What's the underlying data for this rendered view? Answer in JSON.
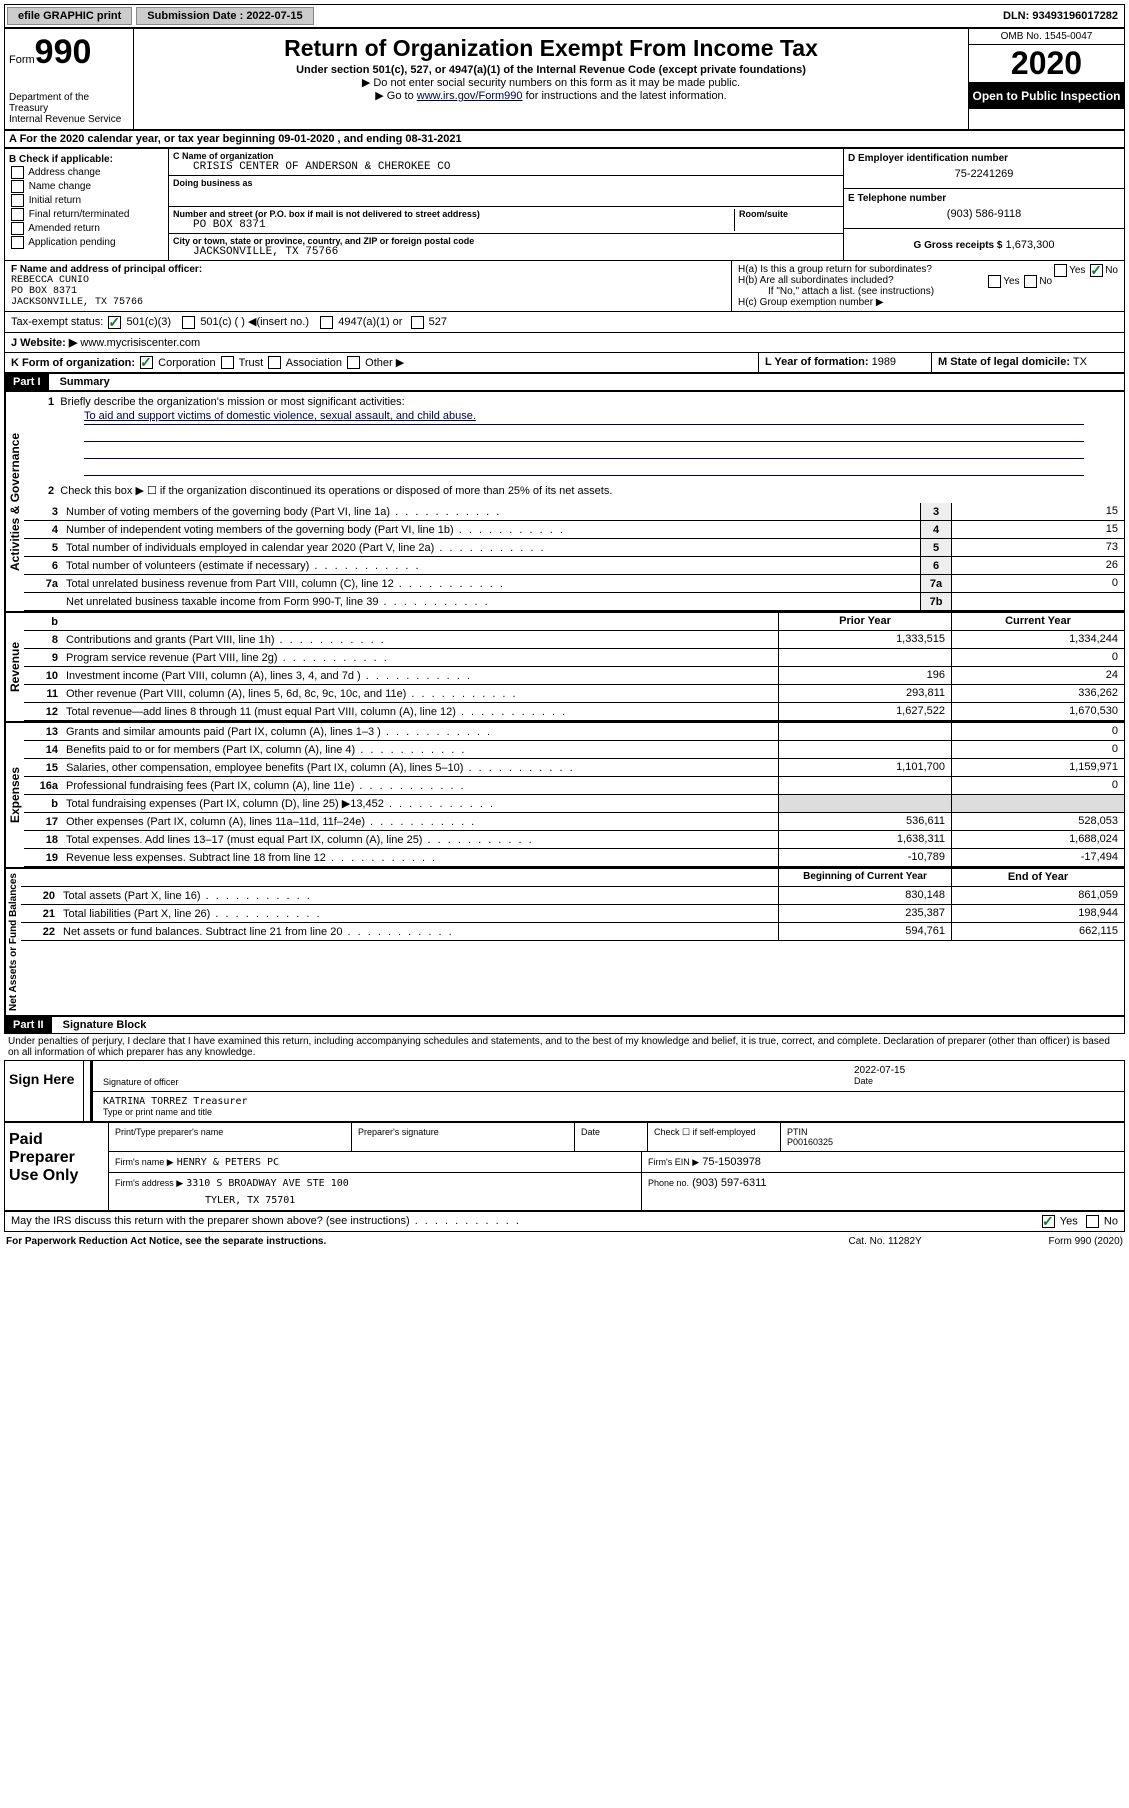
{
  "topbar": {
    "efile": "efile GRAPHIC print",
    "submission_label": "Submission Date : 2022-07-15",
    "dln": "DLN: 93493196017282"
  },
  "header": {
    "form_label": "Form",
    "form_num": "990",
    "dept": "Department of the Treasury",
    "irs": "Internal Revenue Service",
    "title": "Return of Organization Exempt From Income Tax",
    "subtitle": "Under section 501(c), 527, or 4947(a)(1) of the Internal Revenue Code (except private foundations)",
    "note1": "▶ Do not enter social security numbers on this form as it may be made public.",
    "note2_pre": "▶ Go to ",
    "note2_link": "www.irs.gov/Form990",
    "note2_post": " for instructions and the latest information.",
    "omb": "OMB No. 1545-0047",
    "year": "2020",
    "open": "Open to Public Inspection"
  },
  "row_a": "A For the 2020 calendar year, or tax year beginning 09-01-2020    , and ending 08-31-2021",
  "section_b": {
    "b_label": "B Check if applicable:",
    "b_items": [
      "Address change",
      "Name change",
      "Initial return",
      "Final return/terminated",
      "Amended return",
      "Application pending"
    ],
    "c_name_label": "C Name of organization",
    "c_name": "CRISIS CENTER OF ANDERSON & CHEROKEE CO",
    "dba_label": "Doing business as",
    "dba": "",
    "addr_label": "Number and street (or P.O. box if mail is not delivered to street address)",
    "room_label": "Room/suite",
    "addr": "PO BOX 8371",
    "city_label": "City or town, state or province, country, and ZIP or foreign postal code",
    "city": "JACKSONVILLE, TX  75766",
    "d_label": "D Employer identification number",
    "d_val": "75-2241269",
    "e_label": "E Telephone number",
    "e_val": "(903) 586-9118",
    "g_label": "G Gross receipts $",
    "g_val": "1,673,300"
  },
  "section_f": {
    "f_label": "F  Name and address of principal officer:",
    "f_name": "REBECCA CUNIO",
    "f_addr1": "PO BOX 8371",
    "f_addr2": "JACKSONVILLE, TX  75766",
    "ha_label": "H(a)  Is this a group return for subordinates?",
    "hb_label": "H(b)  Are all subordinates included?",
    "hb_note": "If \"No,\" attach a list. (see instructions)",
    "hc_label": "H(c)  Group exemption number ▶"
  },
  "tax_exempt": {
    "label": "Tax-exempt status:",
    "opt1": "501(c)(3)",
    "opt2": "501(c) (   ) ◀(insert no.)",
    "opt3": "4947(a)(1) or",
    "opt4": "527"
  },
  "website": {
    "label": "J Website: ▶",
    "val": "www.mycrisiscenter.com"
  },
  "row_k": {
    "k_label": "K Form of organization:",
    "opts": [
      "Corporation",
      "Trust",
      "Association",
      "Other ▶"
    ],
    "l_label": "L Year of formation:",
    "l_val": "1989",
    "m_label": "M State of legal domicile:",
    "m_val": "TX"
  },
  "part1": {
    "header": "Part I",
    "title": "Summary",
    "q1": "Briefly describe the organization's mission or most significant activities:",
    "mission": "To aid and support victims of domestic violence, sexual assault, and child abuse.",
    "q2": "Check this box ▶ ☐  if the organization discontinued its operations or disposed of more than 25% of its net assets.",
    "governance_label": "Activities & Governance",
    "revenue_label": "Revenue",
    "expenses_label": "Expenses",
    "netassets_label": "Net Assets or Fund Balances",
    "lines_gov": [
      {
        "n": "3",
        "d": "Number of voting members of the governing body (Part VI, line 1a)",
        "b": "3",
        "v": "15"
      },
      {
        "n": "4",
        "d": "Number of independent voting members of the governing body (Part VI, line 1b)",
        "b": "4",
        "v": "15"
      },
      {
        "n": "5",
        "d": "Total number of individuals employed in calendar year 2020 (Part V, line 2a)",
        "b": "5",
        "v": "73"
      },
      {
        "n": "6",
        "d": "Total number of volunteers (estimate if necessary)",
        "b": "6",
        "v": "26"
      },
      {
        "n": "7a",
        "d": "Total unrelated business revenue from Part VIII, column (C), line 12",
        "b": "7a",
        "v": "0"
      },
      {
        "n": "",
        "d": "Net unrelated business taxable income from Form 990-T, line 39",
        "b": "7b",
        "v": ""
      }
    ],
    "col_prior": "Prior Year",
    "col_current": "Current Year",
    "lines_rev": [
      {
        "n": "8",
        "d": "Contributions and grants (Part VIII, line 1h)",
        "p": "1,333,515",
        "c": "1,334,244"
      },
      {
        "n": "9",
        "d": "Program service revenue (Part VIII, line 2g)",
        "p": "",
        "c": "0"
      },
      {
        "n": "10",
        "d": "Investment income (Part VIII, column (A), lines 3, 4, and 7d )",
        "p": "196",
        "c": "24"
      },
      {
        "n": "11",
        "d": "Other revenue (Part VIII, column (A), lines 5, 6d, 8c, 9c, 10c, and 11e)",
        "p": "293,811",
        "c": "336,262"
      },
      {
        "n": "12",
        "d": "Total revenue—add lines 8 through 11 (must equal Part VIII, column (A), line 12)",
        "p": "1,627,522",
        "c": "1,670,530"
      }
    ],
    "lines_exp": [
      {
        "n": "13",
        "d": "Grants and similar amounts paid (Part IX, column (A), lines 1–3 )",
        "p": "",
        "c": "0"
      },
      {
        "n": "14",
        "d": "Benefits paid to or for members (Part IX, column (A), line 4)",
        "p": "",
        "c": "0"
      },
      {
        "n": "15",
        "d": "Salaries, other compensation, employee benefits (Part IX, column (A), lines 5–10)",
        "p": "1,101,700",
        "c": "1,159,971"
      },
      {
        "n": "16a",
        "d": "Professional fundraising fees (Part IX, column (A), line 11e)",
        "p": "",
        "c": "0"
      },
      {
        "n": "b",
        "d": "Total fundraising expenses (Part IX, column (D), line 25) ▶13,452",
        "p": "GRAY",
        "c": "GRAY"
      },
      {
        "n": "17",
        "d": "Other expenses (Part IX, column (A), lines 11a–11d, 11f–24e)",
        "p": "536,611",
        "c": "528,053"
      },
      {
        "n": "18",
        "d": "Total expenses. Add lines 13–17 (must equal Part IX, column (A), line 25)",
        "p": "1,638,311",
        "c": "1,688,024"
      },
      {
        "n": "19",
        "d": "Revenue less expenses. Subtract line 18 from line 12",
        "p": "-10,789",
        "c": "-17,494"
      }
    ],
    "col_begin": "Beginning of Current Year",
    "col_end": "End of Year",
    "lines_net": [
      {
        "n": "20",
        "d": "Total assets (Part X, line 16)",
        "p": "830,148",
        "c": "861,059"
      },
      {
        "n": "21",
        "d": "Total liabilities (Part X, line 26)",
        "p": "235,387",
        "c": "198,944"
      },
      {
        "n": "22",
        "d": "Net assets or fund balances. Subtract line 21 from line 20",
        "p": "594,761",
        "c": "662,115"
      }
    ]
  },
  "part2": {
    "header": "Part II",
    "title": "Signature Block",
    "perjury": "Under penalties of perjury, I declare that I have examined this return, including accompanying schedules and statements, and to the best of my knowledge and belief, it is true, correct, and complete. Declaration of preparer (other than officer) is based on all information of which preparer has any knowledge.",
    "sign_here": "Sign Here",
    "sig_officer": "Signature of officer",
    "sig_date": "2022-07-15",
    "date_label": "Date",
    "officer_name": "KATRINA TORREZ Treasurer",
    "type_label": "Type or print name and title",
    "paid_label": "Paid Preparer Use Only",
    "prep_name_label": "Print/Type preparer's name",
    "prep_sig_label": "Preparer's signature",
    "prep_date_label": "Date",
    "check_self": "Check ☐ if self-employed",
    "ptin_label": "PTIN",
    "ptin": "P00160325",
    "firm_name_label": "Firm's name    ▶",
    "firm_name": "HENRY & PETERS PC",
    "firm_ein_label": "Firm's EIN ▶",
    "firm_ein": "75-1503978",
    "firm_addr_label": "Firm's address ▶",
    "firm_addr1": "3310 S BROADWAY AVE STE 100",
    "firm_addr2": "TYLER, TX  75701",
    "phone_label": "Phone no.",
    "phone": "(903) 597-6311",
    "discuss": "May the IRS discuss this return with the preparer shown above? (see instructions)"
  },
  "footer": {
    "left": "For Paperwork Reduction Act Notice, see the separate instructions.",
    "mid": "Cat. No. 11282Y",
    "right": "Form 990 (2020)"
  }
}
